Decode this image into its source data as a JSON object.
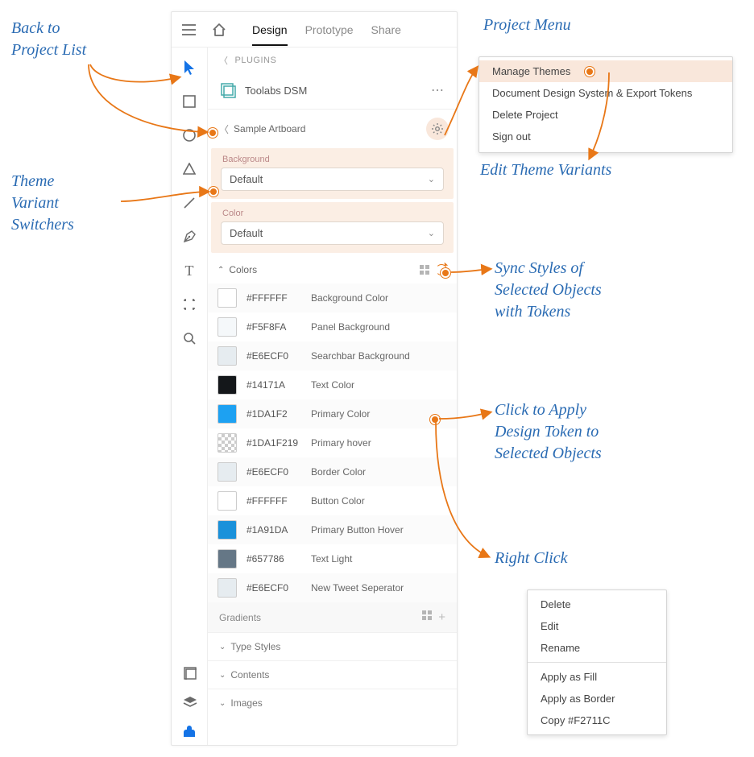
{
  "annotations": {
    "back": "Back to\nProject List",
    "theme": "Theme\nVariant\nSwitchers",
    "project_menu": "Project Menu",
    "edit_variants": "Edit Theme Variants",
    "sync": "Sync Styles of\nSelected Objects\nwith Tokens",
    "apply": "Click to Apply\nDesign Token to\nSelected Objects",
    "right_click": "Right Click"
  },
  "topbar": {
    "tabs": {
      "design": "Design",
      "prototype": "Prototype",
      "share": "Share"
    }
  },
  "plugins_label": "PLUGINS",
  "plugin_name": "Toolabs DSM",
  "breadcrumb": "Sample Artboard",
  "variants": {
    "background": {
      "label": "Background",
      "value": "Default"
    },
    "color": {
      "label": "Color",
      "value": "Default"
    }
  },
  "sections": {
    "colors": "Colors",
    "gradients": "Gradients",
    "type_styles": "Type Styles",
    "contents": "Contents",
    "images": "Images"
  },
  "colors": [
    {
      "hex": "#FFFFFF",
      "name": "Background Color",
      "swatch": "#ffffff"
    },
    {
      "hex": "#F5F8FA",
      "name": "Panel Background",
      "swatch": "#f5f8fa"
    },
    {
      "hex": "#E6ECF0",
      "name": "Searchbar Background",
      "swatch": "#e6ecf0"
    },
    {
      "hex": "#14171A",
      "name": "Text Color",
      "swatch": "#14171a"
    },
    {
      "hex": "#1DA1F2",
      "name": "Primary Color",
      "swatch": "#1da1f2"
    },
    {
      "hex": "#1DA1F219",
      "name": "Primary hover",
      "swatch": "checker"
    },
    {
      "hex": "#E6ECF0",
      "name": "Border Color",
      "swatch": "#e6ecf0"
    },
    {
      "hex": "#FFFFFF",
      "name": "Button Color",
      "swatch": "#ffffff"
    },
    {
      "hex": "#1A91DA",
      "name": "Primary Button Hover",
      "swatch": "#1a91da"
    },
    {
      "hex": "#657786",
      "name": "Text Light",
      "swatch": "#657786"
    },
    {
      "hex": "#E6ECF0",
      "name": "New Tweet Seperator",
      "swatch": "#e6ecf0"
    }
  ],
  "project_menu": {
    "items": [
      "Manage Themes",
      "Document Design System & Export Tokens",
      "Delete Project",
      "Sign out"
    ]
  },
  "context_menu": {
    "group1": [
      "Delete",
      "Edit",
      "Rename"
    ],
    "group2": [
      "Apply as Fill",
      "Apply as Border",
      "Copy #F2711C"
    ]
  },
  "style": {
    "accent": "#e87717",
    "hand_color": "#2a6bb3"
  }
}
